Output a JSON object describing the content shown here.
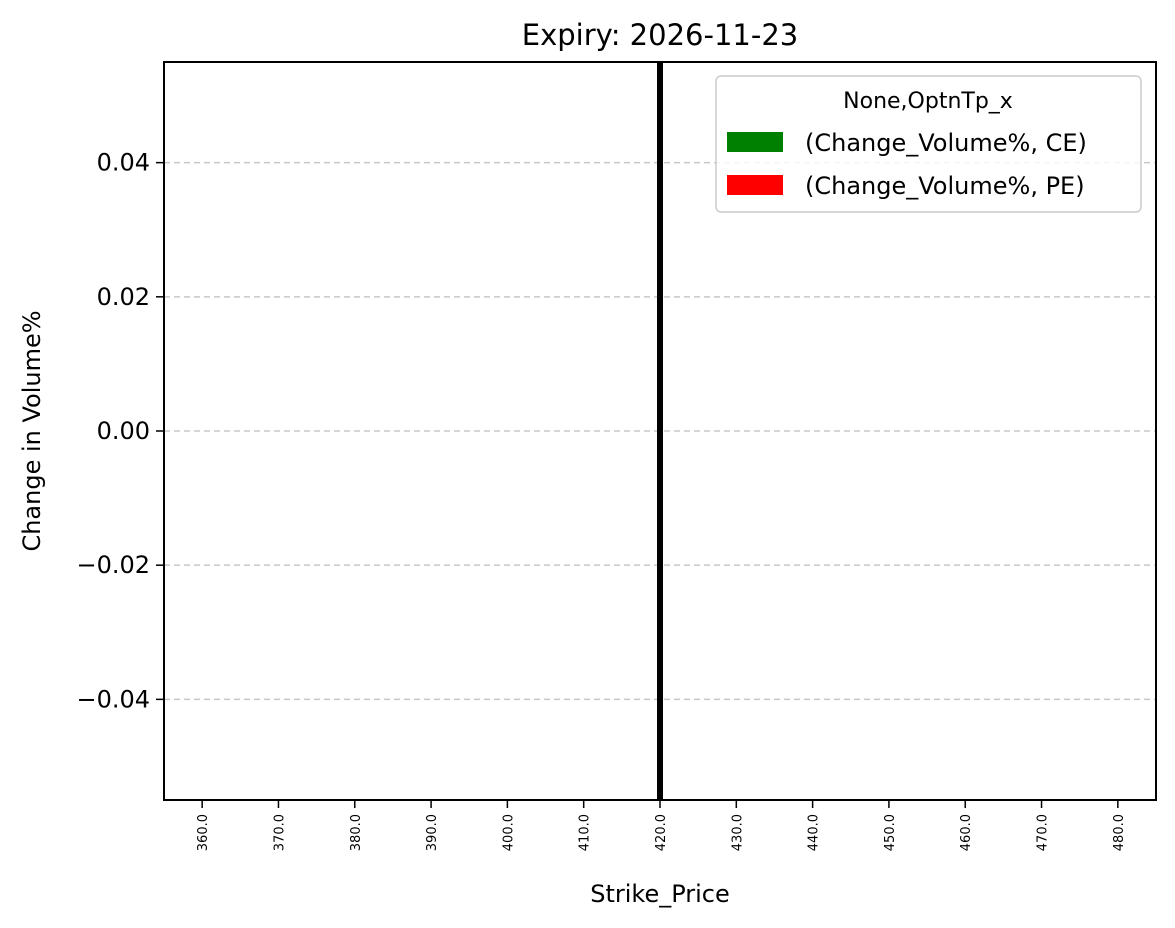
{
  "chart_data": {
    "type": "bar",
    "title": "Expiry: 2026-11-23",
    "xlabel": "Strike_Price",
    "ylabel": "Change in Volume%",
    "categories": [
      "360.0",
      "370.0",
      "380.0",
      "390.0",
      "400.0",
      "410.0",
      "420.0",
      "430.0",
      "440.0",
      "450.0",
      "460.0",
      "470.0",
      "480.0"
    ],
    "series": [
      {
        "name": "(Change_Volume%, CE)",
        "color": "#008000",
        "values": [
          0,
          0,
          0,
          0,
          0,
          0,
          0,
          0,
          0,
          0,
          0,
          0,
          0
        ]
      },
      {
        "name": "(Change_Volume%, PE)",
        "color": "#ff0000",
        "values": [
          0,
          0,
          0,
          0,
          0,
          0,
          0,
          0,
          0,
          0,
          0,
          0,
          0
        ]
      }
    ],
    "ylim": [
      -0.055,
      0.055
    ],
    "yticks": [
      0.04,
      0.02,
      0.0,
      -0.02,
      -0.04
    ],
    "ytick_labels": [
      "0.04",
      "0.02",
      "0.00",
      "−0.02",
      "−0.04"
    ],
    "grid": "y-dashed",
    "legend": {
      "title": "None,OptnTp_x",
      "placement": "top-right"
    },
    "reference_line": {
      "category": "420.0",
      "color": "#000000"
    }
  }
}
